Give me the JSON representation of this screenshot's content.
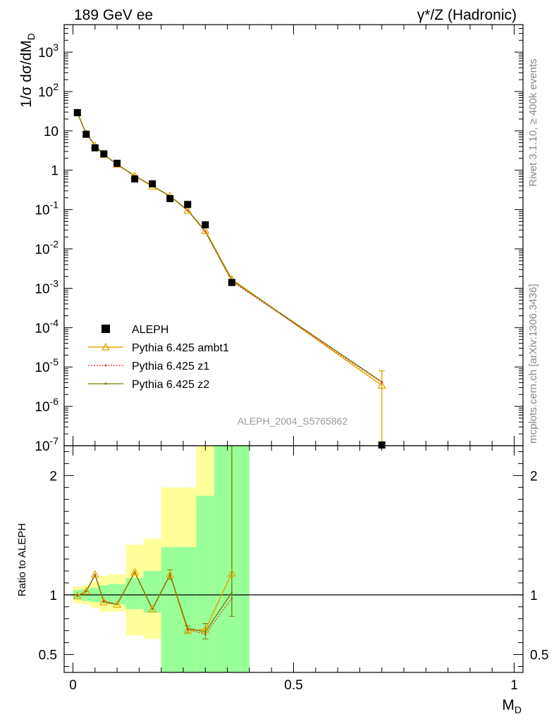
{
  "header": {
    "left": "189 GeV ee",
    "right": "γ*/Z (Hadronic)"
  },
  "side_text": {
    "rivet": "Rivet 3.1.10, ≥ 400k events",
    "mcplots": "mcplots.cern.ch [arXiv:1306.3436]"
  },
  "watermark": "ALEPH_2004_S5765862",
  "colors": {
    "ambt1": "#e8a800",
    "z1": "#e83030",
    "z2": "#7a7a00",
    "band_inner": "#99ff99",
    "band_outer": "#ffff99",
    "data": "#000000"
  },
  "chart_data": [
    {
      "type": "scatter",
      "scale": "log",
      "ylabel": "1/σ dσ/dM_D",
      "ylim": [
        1e-07,
        5000
      ],
      "xlim": [
        -0.02,
        1.02
      ],
      "x_ticks": [
        "0",
        "0.5",
        "1"
      ],
      "y_ticks": [
        "10^-7",
        "10^-6",
        "10^-5",
        "10^-4",
        "10^-3",
        "10^-2",
        "10^-1",
        "1",
        "10",
        "10^2",
        "10^3"
      ],
      "legend": [
        "ALEPH",
        "Pythia 6.425 ambt1",
        "Pythia 6.425 z1",
        "Pythia 6.425 z2"
      ],
      "legend_position": "bottom-left",
      "data": {
        "name": "ALEPH",
        "x": [
          0.01,
          0.03,
          0.05,
          0.07,
          0.1,
          0.14,
          0.18,
          0.22,
          0.26,
          0.3,
          0.36,
          0.7
        ],
        "y": [
          29,
          8.2,
          3.7,
          2.6,
          1.5,
          0.6,
          0.45,
          0.19,
          0.135,
          0.041,
          0.0014,
          1e-07
        ]
      },
      "series": [
        {
          "name": "Pythia 6.425 ambt1",
          "x": [
            0.01,
            0.03,
            0.05,
            0.07,
            0.1,
            0.14,
            0.18,
            0.22,
            0.26,
            0.3,
            0.36,
            0.7
          ],
          "y": [
            29,
            8.5,
            4.2,
            2.5,
            1.4,
            0.72,
            0.39,
            0.22,
            0.095,
            0.029,
            0.0017,
            3.4e-06
          ]
        },
        {
          "name": "Pythia 6.425 z1",
          "x": [
            0.01,
            0.03,
            0.05,
            0.07,
            0.1,
            0.14,
            0.18,
            0.22,
            0.26,
            0.3,
            0.36,
            0.7
          ],
          "y": [
            29,
            8.5,
            4.3,
            2.5,
            1.4,
            0.72,
            0.4,
            0.22,
            0.095,
            0.027,
            0.0015,
            4e-06
          ]
        },
        {
          "name": "Pythia 6.425 z2",
          "x": [
            0.01,
            0.03,
            0.05,
            0.07,
            0.1,
            0.14,
            0.18,
            0.22,
            0.26,
            0.3,
            0.36,
            0.7
          ],
          "y": [
            29,
            8.5,
            4.3,
            2.5,
            1.4,
            0.72,
            0.4,
            0.22,
            0.096,
            0.028,
            0.0016,
            4.2e-06
          ]
        }
      ]
    },
    {
      "type": "line",
      "ylabel": "Ratio to ALEPH",
      "xlabel": "M_D",
      "ylim": [
        0.35,
        2.25
      ],
      "xlim": [
        -0.02,
        1.02
      ],
      "y_ticks": [
        "0.5",
        "1",
        "2"
      ],
      "x_ticks": [
        "0",
        "0.5",
        "1"
      ],
      "bands": [
        {
          "x0": 0.0,
          "x1": 0.02,
          "inner": [
            0.96,
            1.04
          ],
          "outer": [
            0.93,
            1.07
          ]
        },
        {
          "x0": 0.02,
          "x1": 0.04,
          "inner": [
            0.95,
            1.05
          ],
          "outer": [
            0.92,
            1.08
          ]
        },
        {
          "x0": 0.04,
          "x1": 0.06,
          "inner": [
            0.94,
            1.06
          ],
          "outer": [
            0.89,
            1.11
          ]
        },
        {
          "x0": 0.06,
          "x1": 0.08,
          "inner": [
            0.93,
            1.08
          ],
          "outer": [
            0.86,
            1.16
          ]
        },
        {
          "x0": 0.08,
          "x1": 0.12,
          "inner": [
            0.92,
            1.09
          ],
          "outer": [
            0.86,
            1.17
          ]
        },
        {
          "x0": 0.12,
          "x1": 0.16,
          "inner": [
            0.88,
            1.14
          ],
          "outer": [
            0.66,
            1.42
          ]
        },
        {
          "x0": 0.16,
          "x1": 0.2,
          "inner": [
            0.85,
            1.2
          ],
          "outer": [
            0.63,
            1.47
          ]
        },
        {
          "x0": 0.2,
          "x1": 0.28,
          "inner": [
            0.35,
            1.4
          ],
          "outer": [
            0.35,
            1.9
          ]
        },
        {
          "x0": 0.28,
          "x1": 0.32,
          "inner": [
            0.35,
            1.83
          ],
          "outer": [
            0.35,
            2.25
          ]
        },
        {
          "x0": 0.32,
          "x1": 0.4,
          "inner": [
            0.35,
            2.25
          ],
          "outer": [
            0.35,
            2.25
          ]
        }
      ],
      "series": [
        {
          "name": "Pythia 6.425 ambt1",
          "x": [
            0.01,
            0.03,
            0.05,
            0.07,
            0.1,
            0.14,
            0.18,
            0.22,
            0.26,
            0.3,
            0.36
          ],
          "y": [
            0.99,
            1.03,
            1.17,
            0.94,
            0.92,
            1.19,
            0.88,
            1.17,
            0.7,
            0.71,
            1.18
          ]
        },
        {
          "name": "Pythia 6.425 z1",
          "x": [
            0.01,
            0.03,
            0.05,
            0.07,
            0.1,
            0.14,
            0.18,
            0.22,
            0.26,
            0.3,
            0.36
          ],
          "y": [
            0.99,
            1.03,
            1.16,
            0.95,
            0.92,
            1.19,
            0.88,
            1.17,
            0.71,
            0.67,
            0.97
          ]
        },
        {
          "name": "Pythia 6.425 z2",
          "x": [
            0.01,
            0.03,
            0.05,
            0.07,
            0.1,
            0.14,
            0.18,
            0.22,
            0.26,
            0.3,
            0.36
          ],
          "y": [
            0.99,
            1.03,
            1.17,
            0.94,
            0.92,
            1.19,
            0.88,
            1.17,
            0.72,
            0.69,
            1.02
          ]
        }
      ]
    }
  ]
}
